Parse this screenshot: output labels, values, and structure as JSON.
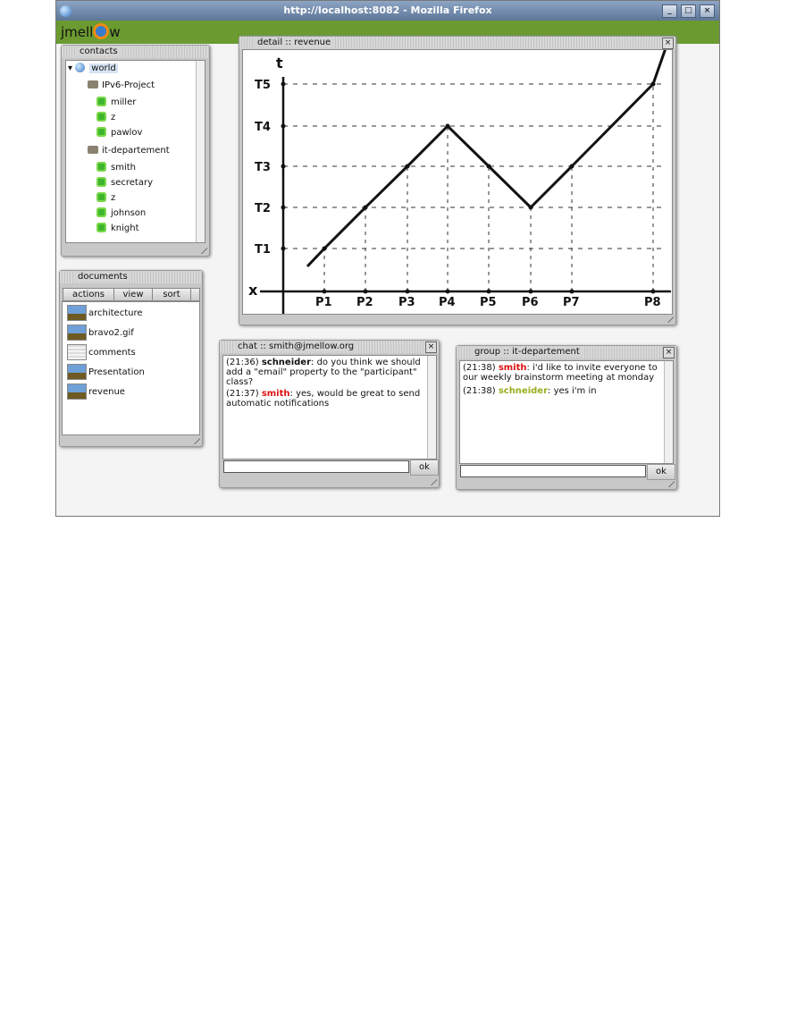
{
  "browser": {
    "title": "http://localhost:8082 - Mozilla Firefox",
    "buttons": {
      "minimize": "_",
      "maximize": "□",
      "close": "×"
    }
  },
  "app": {
    "logo_prefix": "jmell",
    "logo_suffix": "w"
  },
  "contacts": {
    "title": "contacts",
    "root": "world",
    "groups": [
      {
        "name": "IPv6-Project",
        "members": [
          "miller",
          "z",
          "pawlov"
        ]
      },
      {
        "name": "it-departement",
        "members": [
          "smith",
          "secretary",
          "z",
          "johnson",
          "knight"
        ]
      }
    ]
  },
  "documents": {
    "title": "documents",
    "toolbar": [
      "actions",
      "view",
      "sort"
    ],
    "items": [
      {
        "name": "architecture",
        "icon": "image-icon"
      },
      {
        "name": "bravo2.gif",
        "icon": "image-icon"
      },
      {
        "name": "comments",
        "icon": "text-document-icon"
      },
      {
        "name": "Presentation",
        "icon": "image-icon"
      },
      {
        "name": "revenue",
        "icon": "image-icon"
      }
    ]
  },
  "detail": {
    "title": "detail :: revenue",
    "sketch": {
      "y_axis": "t",
      "x_axis": "x",
      "y_ticks": [
        "T1",
        "T2",
        "T3",
        "T4",
        "T5"
      ],
      "x_ticks": [
        "P1",
        "P2",
        "P3",
        "P4",
        "P5",
        "P6",
        "P7",
        "P8"
      ],
      "line_levels": [
        "T1",
        "T2",
        "T3",
        "T4",
        "T3",
        "T2",
        "T3",
        "T5"
      ]
    }
  },
  "chat": {
    "title": "chat :: smith@jmellow.org",
    "messages": [
      {
        "time": "(21:36)",
        "user": "schneider",
        "text": ": do you think we should add a \"email\" property to the \"participant\" class?",
        "color": "#000000"
      },
      {
        "time": "(21:37)",
        "user": "smith",
        "text": ": yes, would be great to send automatic notifications",
        "color": "#dd1111"
      }
    ],
    "input_value": "",
    "ok": "ok"
  },
  "group": {
    "title": "group :: it-departement",
    "messages": [
      {
        "time": "(21:38)",
        "user": "smith",
        "text": ": i'd like to invite everyone to our weekly brainstorm meeting at monday",
        "color": "#dd1111"
      },
      {
        "time": "(21:38)",
        "user": "schneider",
        "text": ": yes i'm in",
        "color": "#9aac1a"
      }
    ],
    "input_value": "",
    "ok": "ok"
  },
  "close_glyph": "×"
}
